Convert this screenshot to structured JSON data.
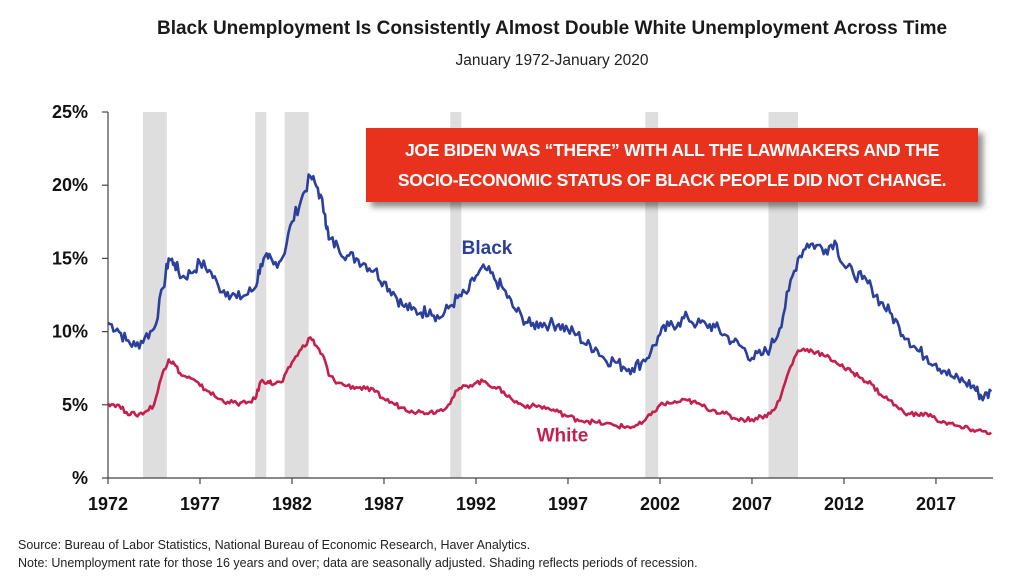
{
  "chart_data": {
    "type": "line",
    "title": "Black Unemployment Is Consistently Almost Double White Unemployment Across Time",
    "subtitle": "January 1972-January 2020",
    "x_tick_labels": [
      "1972",
      "1977",
      "1982",
      "1987",
      "1992",
      "1997",
      "2002",
      "2007",
      "2012",
      "2017"
    ],
    "y_tick_labels": [
      "%",
      "5%",
      "10%",
      "15%",
      "20%",
      "25%"
    ],
    "xlim": [
      1972,
      2020.1
    ],
    "ylim": [
      0,
      25
    ],
    "grid": false,
    "recessions": [
      [
        1973.9,
        1975.2
      ],
      [
        1980.0,
        1980.6
      ],
      [
        1981.6,
        1982.9
      ],
      [
        1990.6,
        1991.2
      ],
      [
        2001.2,
        2001.9
      ],
      [
        2007.9,
        2009.5
      ]
    ],
    "series": [
      {
        "name": "Black",
        "color": "#2b3f9c",
        "label_position": [
          1992.6,
          15.3
        ],
        "points": [
          [
            1972,
            10.6
          ],
          [
            1972.5,
            10.2
          ],
          [
            1973,
            9.4
          ],
          [
            1973.5,
            9.0
          ],
          [
            1974,
            9.6
          ],
          [
            1974.5,
            10.2
          ],
          [
            1975,
            13.0
          ],
          [
            1975.3,
            15.0
          ],
          [
            1975.6,
            14.7
          ],
          [
            1976,
            13.7
          ],
          [
            1976.5,
            14.0
          ],
          [
            1977,
            14.7
          ],
          [
            1977.5,
            14.2
          ],
          [
            1978,
            13.1
          ],
          [
            1978.5,
            12.7
          ],
          [
            1979,
            12.3
          ],
          [
            1979.5,
            12.5
          ],
          [
            1980,
            13.0
          ],
          [
            1980.3,
            14.6
          ],
          [
            1980.7,
            15.0
          ],
          [
            1981,
            14.6
          ],
          [
            1981.5,
            15.1
          ],
          [
            1982,
            17.5
          ],
          [
            1982.5,
            19.0
          ],
          [
            1983,
            20.6
          ],
          [
            1983.4,
            19.8
          ],
          [
            1983.8,
            18.0
          ],
          [
            1984,
            16.3
          ],
          [
            1984.5,
            15.8
          ],
          [
            1985,
            15.2
          ],
          [
            1985.5,
            15.0
          ],
          [
            1986,
            14.6
          ],
          [
            1986.5,
            14.2
          ],
          [
            1987,
            13.4
          ],
          [
            1987.5,
            12.7
          ],
          [
            1988,
            11.8
          ],
          [
            1988.5,
            11.5
          ],
          [
            1989,
            11.3
          ],
          [
            1989.5,
            11.5
          ],
          [
            1990,
            10.9
          ],
          [
            1990.5,
            11.6
          ],
          [
            1991,
            12.3
          ],
          [
            1991.5,
            12.6
          ],
          [
            1992,
            13.8
          ],
          [
            1992.5,
            14.3
          ],
          [
            1993,
            13.6
          ],
          [
            1993.5,
            12.9
          ],
          [
            1994,
            11.7
          ],
          [
            1994.5,
            11.0
          ],
          [
            1995,
            10.4
          ],
          [
            1995.5,
            10.6
          ],
          [
            1996,
            10.5
          ],
          [
            1996.5,
            10.5
          ],
          [
            1997,
            10.1
          ],
          [
            1997.5,
            9.8
          ],
          [
            1998,
            9.1
          ],
          [
            1998.5,
            8.9
          ],
          [
            1999,
            8.1
          ],
          [
            1999.5,
            8.0
          ],
          [
            2000,
            7.6
          ],
          [
            2000.5,
            7.5
          ],
          [
            2001,
            7.9
          ],
          [
            2001.5,
            8.6
          ],
          [
            2002,
            9.8
          ],
          [
            2002.5,
            10.4
          ],
          [
            2003,
            10.6
          ],
          [
            2003.5,
            11.0
          ],
          [
            2004,
            10.5
          ],
          [
            2004.5,
            10.5
          ],
          [
            2005,
            10.3
          ],
          [
            2005.5,
            9.8
          ],
          [
            2006,
            9.3
          ],
          [
            2006.5,
            8.9
          ],
          [
            2007,
            8.2
          ],
          [
            2007.5,
            8.4
          ],
          [
            2008,
            8.9
          ],
          [
            2008.5,
            10.2
          ],
          [
            2009,
            12.8
          ],
          [
            2009.5,
            15.0
          ],
          [
            2010,
            16.0
          ],
          [
            2010.5,
            15.9
          ],
          [
            2011,
            15.6
          ],
          [
            2011.5,
            16.2
          ],
          [
            2012,
            14.5
          ],
          [
            2012.5,
            14.0
          ],
          [
            2013,
            13.6
          ],
          [
            2013.5,
            13.0
          ],
          [
            2014,
            12.0
          ],
          [
            2014.5,
            11.3
          ],
          [
            2015,
            10.3
          ],
          [
            2015.5,
            9.5
          ],
          [
            2016,
            8.7
          ],
          [
            2016.5,
            8.3
          ],
          [
            2017,
            7.8
          ],
          [
            2017.5,
            7.3
          ],
          [
            2018,
            6.8
          ],
          [
            2018.5,
            6.6
          ],
          [
            2019,
            6.3
          ],
          [
            2019.3,
            5.8
          ],
          [
            2019.6,
            5.5
          ],
          [
            2020,
            5.9
          ]
        ]
      },
      {
        "name": "White",
        "color": "#c4204e",
        "label_position": [
          1996.7,
          2.5
        ],
        "points": [
          [
            1972,
            5.1
          ],
          [
            1972.5,
            5.0
          ],
          [
            1973,
            4.5
          ],
          [
            1973.5,
            4.3
          ],
          [
            1974,
            4.5
          ],
          [
            1974.5,
            5.0
          ],
          [
            1975,
            7.3
          ],
          [
            1975.3,
            8.1
          ],
          [
            1975.6,
            7.8
          ],
          [
            1976,
            7.0
          ],
          [
            1976.5,
            6.8
          ],
          [
            1977,
            6.3
          ],
          [
            1977.5,
            5.9
          ],
          [
            1978,
            5.4
          ],
          [
            1978.5,
            5.2
          ],
          [
            1979,
            5.1
          ],
          [
            1979.5,
            5.1
          ],
          [
            1980,
            5.4
          ],
          [
            1980.3,
            6.6
          ],
          [
            1980.7,
            6.6
          ],
          [
            1981,
            6.4
          ],
          [
            1981.5,
            6.6
          ],
          [
            1982,
            7.9
          ],
          [
            1982.5,
            8.8
          ],
          [
            1983,
            9.6
          ],
          [
            1983.4,
            8.9
          ],
          [
            1983.8,
            8.0
          ],
          [
            1984,
            7.0
          ],
          [
            1984.5,
            6.5
          ],
          [
            1985,
            6.3
          ],
          [
            1985.5,
            6.2
          ],
          [
            1986,
            6.1
          ],
          [
            1986.5,
            5.9
          ],
          [
            1987,
            5.4
          ],
          [
            1987.5,
            5.1
          ],
          [
            1988,
            4.8
          ],
          [
            1988.5,
            4.6
          ],
          [
            1989,
            4.5
          ],
          [
            1989.5,
            4.5
          ],
          [
            1990,
            4.6
          ],
          [
            1990.5,
            5.0
          ],
          [
            1991,
            6.0
          ],
          [
            1991.5,
            6.3
          ],
          [
            1992,
            6.5
          ],
          [
            1992.5,
            6.6
          ],
          [
            1993,
            6.2
          ],
          [
            1993.5,
            5.9
          ],
          [
            1994,
            5.3
          ],
          [
            1994.5,
            5.0
          ],
          [
            1995,
            4.9
          ],
          [
            1995.5,
            4.9
          ],
          [
            1996,
            4.7
          ],
          [
            1996.5,
            4.5
          ],
          [
            1997,
            4.2
          ],
          [
            1997.5,
            4.0
          ],
          [
            1998,
            3.9
          ],
          [
            1998.5,
            3.8
          ],
          [
            1999,
            3.7
          ],
          [
            1999.5,
            3.6
          ],
          [
            2000,
            3.5
          ],
          [
            2000.5,
            3.5
          ],
          [
            2001,
            3.7
          ],
          [
            2001.5,
            4.3
          ],
          [
            2002,
            5.0
          ],
          [
            2002.5,
            5.1
          ],
          [
            2003,
            5.2
          ],
          [
            2003.5,
            5.3
          ],
          [
            2004,
            5.1
          ],
          [
            2004.5,
            4.8
          ],
          [
            2005,
            4.6
          ],
          [
            2005.5,
            4.4
          ],
          [
            2006,
            4.1
          ],
          [
            2006.5,
            4.0
          ],
          [
            2007,
            4.0
          ],
          [
            2007.5,
            4.2
          ],
          [
            2008,
            4.4
          ],
          [
            2008.5,
            5.3
          ],
          [
            2009,
            7.3
          ],
          [
            2009.5,
            8.7
          ],
          [
            2010,
            8.8
          ],
          [
            2010.5,
            8.6
          ],
          [
            2011,
            8.3
          ],
          [
            2011.5,
            8.0
          ],
          [
            2012,
            7.5
          ],
          [
            2012.5,
            7.2
          ],
          [
            2013,
            6.8
          ],
          [
            2013.5,
            6.4
          ],
          [
            2014,
            5.7
          ],
          [
            2014.5,
            5.3
          ],
          [
            2015,
            4.7
          ],
          [
            2015.5,
            4.4
          ],
          [
            2016,
            4.3
          ],
          [
            2016.5,
            4.4
          ],
          [
            2017,
            4.0
          ],
          [
            2017.5,
            3.8
          ],
          [
            2018,
            3.6
          ],
          [
            2018.5,
            3.4
          ],
          [
            2019,
            3.3
          ],
          [
            2019.5,
            3.2
          ],
          [
            2020,
            3.1
          ]
        ]
      }
    ]
  },
  "callout": {
    "line1": "JOE BIDEN WAS “THERE” WITH ALL THE LAWMAKERS AND THE",
    "line2": "SOCIO-ECONOMIC STATUS OF BLACK PEOPLE DID NOT CHANGE."
  },
  "footnotes": {
    "source": "Source: Bureau of Labor Statistics, National Bureau of Economic Research, Haver Analytics.",
    "note": "Note: Unemployment rate for those 16 years and over; data are seasonally adjusted. Shading reflects periods of recession."
  }
}
